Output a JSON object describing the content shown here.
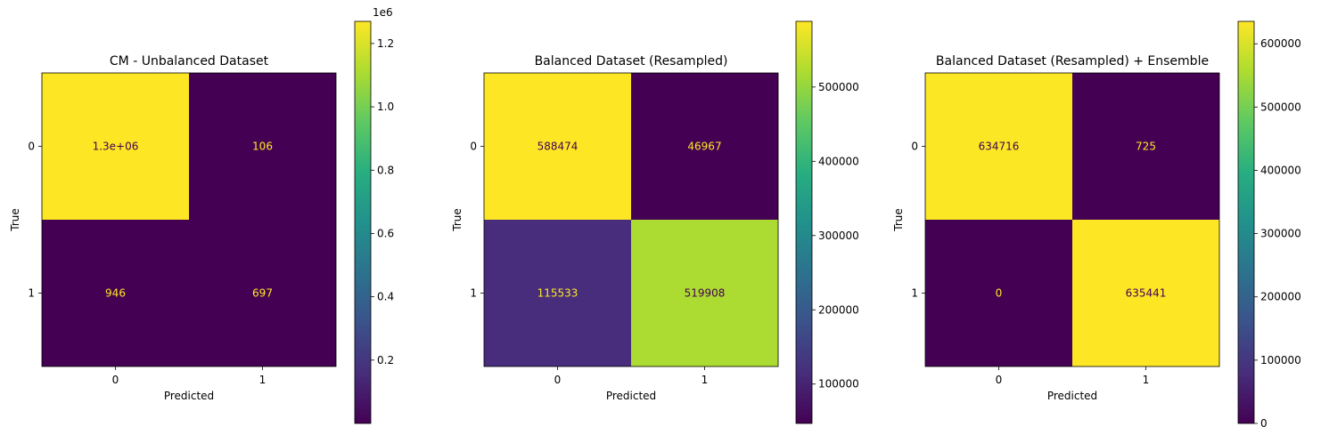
{
  "chart_data": [
    {
      "type": "heatmap",
      "title": "CM - Unbalanced Dataset",
      "xlabel": "Predicted",
      "ylabel": "True",
      "x_categories": [
        "0",
        "1"
      ],
      "y_categories": [
        "0",
        "1"
      ],
      "values": [
        [
          1270000,
          106
        ],
        [
          946,
          697
        ]
      ],
      "value_labels": [
        [
          "1.3e+06",
          "106"
        ],
        [
          "946",
          "697"
        ]
      ],
      "colormap": "viridis",
      "colorbar": {
        "range": [
          0,
          1270000
        ],
        "ticks": [
          200000,
          400000,
          600000,
          800000,
          1000000,
          1200000
        ],
        "tick_labels": [
          "0.2",
          "0.4",
          "0.6",
          "0.8",
          "1.0",
          "1.2"
        ],
        "offset_label": "1e6"
      }
    },
    {
      "type": "heatmap",
      "title": "Balanced Dataset (Resampled)",
      "xlabel": "Predicted",
      "ylabel": "True",
      "x_categories": [
        "0",
        "1"
      ],
      "y_categories": [
        "0",
        "1"
      ],
      "values": [
        [
          588474,
          46967
        ],
        [
          115533,
          519908
        ]
      ],
      "value_labels": [
        [
          "588474",
          "46967"
        ],
        [
          "115533",
          "519908"
        ]
      ],
      "colormap": "viridis",
      "colorbar": {
        "range": [
          46967,
          588474
        ],
        "ticks": [
          100000,
          200000,
          300000,
          400000,
          500000
        ],
        "tick_labels": [
          "100000",
          "200000",
          "300000",
          "400000",
          "500000"
        ]
      }
    },
    {
      "type": "heatmap",
      "title": "Balanced Dataset (Resampled) + Ensemble",
      "xlabel": "Predicted",
      "ylabel": "True",
      "x_categories": [
        "0",
        "1"
      ],
      "y_categories": [
        "0",
        "1"
      ],
      "values": [
        [
          634716,
          725
        ],
        [
          0,
          635441
        ]
      ],
      "value_labels": [
        [
          "634716",
          "725"
        ],
        [
          "0",
          "635441"
        ]
      ],
      "colormap": "viridis",
      "colorbar": {
        "range": [
          0,
          635441
        ],
        "ticks": [
          0,
          100000,
          200000,
          300000,
          400000,
          500000,
          600000
        ],
        "tick_labels": [
          "0",
          "100000",
          "200000",
          "300000",
          "400000",
          "500000",
          "600000"
        ]
      }
    }
  ]
}
